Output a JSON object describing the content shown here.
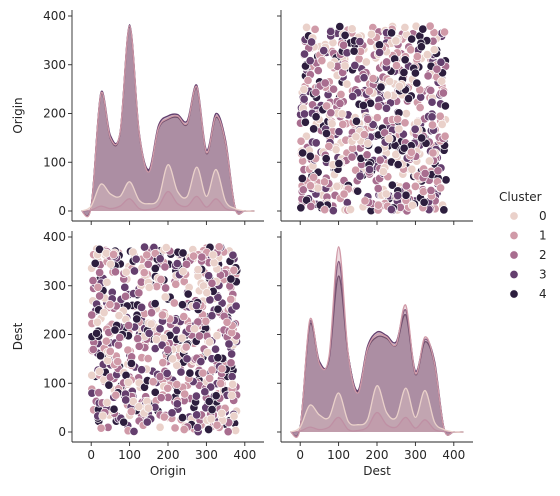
{
  "chart_data": {
    "type": "scatter",
    "title": "",
    "variables": [
      "Origin",
      "Dest"
    ],
    "axis_range": [
      -50,
      450
    ],
    "ticks": [
      0,
      100,
      200,
      300,
      400
    ],
    "legend": {
      "title": "Cluster",
      "placement": "right",
      "entries": [
        {
          "name": "0",
          "color": "#ead1ca"
        },
        {
          "name": "1",
          "color": "#d09aa8"
        },
        {
          "name": "2",
          "color": "#a86d8f"
        },
        {
          "name": "3",
          "color": "#643f6e"
        },
        {
          "name": "4",
          "color": "#2d1e3e"
        }
      ]
    },
    "diag_origin": {
      "x": [
        0,
        25,
        50,
        75,
        100,
        125,
        150,
        175,
        200,
        225,
        250,
        275,
        300,
        325,
        350,
        375,
        400
      ],
      "series": [
        {
          "name": "0",
          "values": [
            10,
            55,
            35,
            30,
            60,
            22,
            15,
            25,
            95,
            40,
            30,
            90,
            30,
            85,
            20,
            5,
            0
          ]
        },
        {
          "name": "1",
          "values": [
            8,
            240,
            150,
            160,
            380,
            160,
            80,
            170,
            190,
            195,
            180,
            255,
            120,
            195,
            140,
            5,
            0
          ]
        },
        {
          "name": "2",
          "values": [
            2,
            10,
            5,
            10,
            25,
            5,
            3,
            10,
            40,
            15,
            10,
            30,
            8,
            25,
            5,
            1,
            0
          ]
        },
        {
          "name": "3",
          "values": [
            10,
            242,
            155,
            160,
            382,
            162,
            85,
            175,
            195,
            198,
            185,
            258,
            125,
            200,
            145,
            6,
            0
          ]
        },
        {
          "name": "4",
          "values": [
            10,
            238,
            148,
            158,
            378,
            158,
            82,
            168,
            188,
            192,
            178,
            252,
            118,
            192,
            138,
            5,
            0
          ]
        }
      ]
    },
    "diag_dest": {
      "x": [
        0,
        25,
        50,
        75,
        100,
        125,
        150,
        175,
        200,
        225,
        250,
        275,
        300,
        325,
        350,
        375,
        400
      ],
      "series": [
        {
          "name": "0",
          "values": [
            10,
            55,
            35,
            30,
            80,
            22,
            15,
            25,
            95,
            40,
            30,
            90,
            30,
            85,
            20,
            5,
            0
          ]
        },
        {
          "name": "1",
          "values": [
            8,
            230,
            140,
            155,
            380,
            160,
            80,
            170,
            200,
            195,
            180,
            260,
            120,
            195,
            140,
            5,
            0
          ]
        },
        {
          "name": "2",
          "values": [
            2,
            10,
            5,
            10,
            30,
            5,
            3,
            10,
            40,
            15,
            10,
            30,
            8,
            25,
            5,
            1,
            0
          ]
        },
        {
          "name": "3",
          "values": [
            10,
            225,
            145,
            150,
            350,
            160,
            85,
            175,
            205,
            198,
            185,
            250,
            125,
            190,
            145,
            6,
            0
          ]
        },
        {
          "name": "4",
          "values": [
            10,
            220,
            140,
            148,
            320,
            158,
            82,
            168,
            195,
            192,
            178,
            240,
            118,
            185,
            138,
            5,
            0
          ]
        }
      ]
    },
    "scatter": {
      "points_per_cluster": 150,
      "x_range": [
        0,
        380
      ],
      "y_range": [
        0,
        380
      ]
    }
  }
}
